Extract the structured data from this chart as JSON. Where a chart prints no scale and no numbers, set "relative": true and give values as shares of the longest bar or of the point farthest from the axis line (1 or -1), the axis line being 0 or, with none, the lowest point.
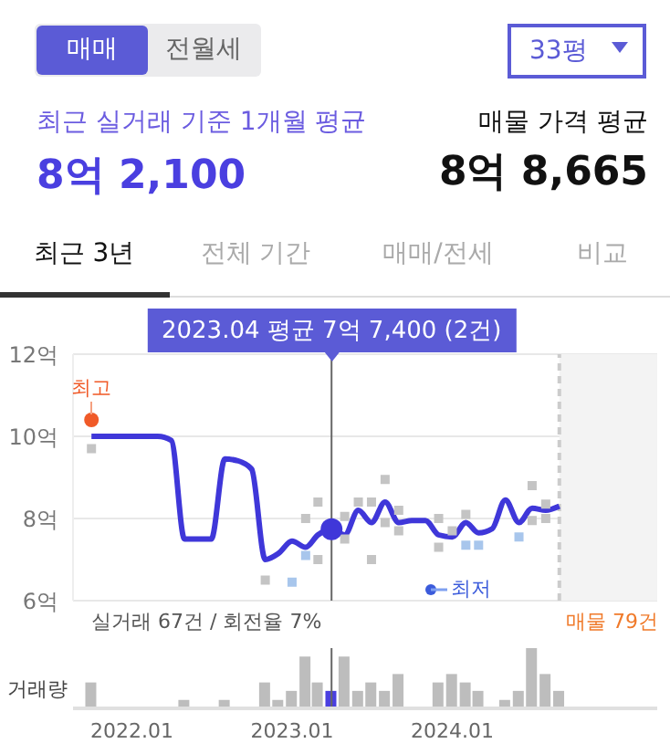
{
  "chart_data": [
    {
      "type": "other",
      "annotations": [
        "매매",
        "전월세",
        "33평",
        "최근 실거래 기준 1개월 평균",
        "8억 2,100",
        "매물 가격 평균",
        "8억 8,665",
        "최근 3년",
        "전체 기간",
        "매매/전세",
        "비교"
      ]
    },
    {
      "type": "line",
      "xlim": [
        "2021-08-20",
        "2025-04-12"
      ],
      "ylim": [
        6,
        12
      ],
      "yticks": [
        {
          "value": 6,
          "label": "6억"
        },
        {
          "value": 8,
          "label": "8억"
        },
        {
          "value": 10,
          "label": "10억"
        },
        {
          "value": 12,
          "label": "12억"
        }
      ],
      "tick_labels": "y",
      "grid": "y",
      "marker": "none",
      "x": [
        "2021-10",
        "2021-11",
        "2021-12",
        "2022-01",
        "2022-02",
        "2022-03",
        "2022-04",
        "2022-05",
        "2022-06",
        "2022-07",
        "2022-08",
        "2022-09",
        "2022-10",
        "2022-11",
        "2022-12",
        "2023-01",
        "2023-02",
        "2023-03",
        "2023-04",
        "2023-05",
        "2023-06",
        "2023-07",
        "2023-08",
        "2023-09",
        "2023-10",
        "2023-11",
        "2023-12",
        "2024-01",
        "2024-02",
        "2024-03",
        "2024-04",
        "2024-05",
        "2024-06",
        "2024-07",
        "2024-08",
        "2024-09"
      ],
      "series": [
        {
          "color": "#3f37d9",
          "values": [
            10.0,
            10.0,
            10.0,
            10.0,
            10.0,
            10.0,
            9.9,
            7.5,
            7.5,
            7.5,
            9.45,
            9.4,
            9.2,
            7.0,
            7.15,
            7.45,
            7.3,
            7.6,
            7.74,
            7.6,
            8.2,
            7.9,
            8.4,
            7.9,
            7.95,
            7.95,
            7.6,
            7.55,
            7.9,
            7.65,
            7.75,
            8.45,
            7.9,
            8.25,
            8.2,
            8.3
          ]
        },
        {
          "type": "scatter",
          "marker": "square",
          "color": "#c4c4c4",
          "x": [
            "2021-10",
            "2022-11",
            "2023-02",
            "2023-03",
            "2023-03",
            "2023-05",
            "2023-05",
            "2023-06",
            "2023-07",
            "2023-07",
            "2023-08",
            "2023-08",
            "2023-09",
            "2023-09",
            "2023-12",
            "2023-12",
            "2024-01",
            "2024-02",
            "2024-07",
            "2024-07",
            "2024-08",
            "2024-08"
          ],
          "values": [
            9.7,
            6.5,
            8.0,
            8.4,
            7.0,
            8.05,
            7.5,
            8.4,
            8.4,
            7.0,
            8.95,
            7.9,
            8.2,
            7.7,
            8.0,
            7.3,
            7.7,
            8.1,
            8.8,
            7.95,
            8.35,
            8.0
          ]
        },
        {
          "type": "scatter",
          "marker": "square",
          "color": "#a8c6ec",
          "x": [
            "2023-01",
            "2023-02",
            "2024-02",
            "2024-03",
            "2024-06"
          ],
          "values": [
            6.45,
            7.1,
            7.35,
            7.35,
            7.55
          ]
        }
      ],
      "ref_lines": [
        {
          "axis": "x",
          "value": "2023-04",
          "color": "#666666"
        },
        {
          "axis": "x",
          "value": "2024-09",
          "color": "#cccccc",
          "line_style": "dashed"
        }
      ],
      "bands": [
        {
          "axis": "x",
          "from": "2024-09",
          "to": "2025-04-12",
          "color": "#f3f3f3"
        }
      ],
      "annotations": [
        "2023.04 평균 7억 7,400 (2건)",
        {
          "text": "최고",
          "x": "2021-10",
          "y": 10.4
        },
        "최저",
        "실거래 67건 / 회전율 7%",
        "매물 79건"
      ]
    },
    {
      "type": "bar",
      "relative": true,
      "ylabel": "거래량",
      "xlim": [
        "2021-08-20",
        "2025-04-12"
      ],
      "xticks": [
        {
          "value": "2022-01",
          "label": "2022.01"
        },
        {
          "value": "2023-01",
          "label": "2023.01"
        },
        {
          "value": "2024-01",
          "label": "2024.01"
        }
      ],
      "x": [
        "2021-10",
        "2022-05",
        "2022-08",
        "2022-11",
        "2022-12",
        "2023-01",
        "2023-02",
        "2023-03",
        "2023-04",
        "2023-05",
        "2023-06",
        "2023-07",
        "2023-08",
        "2023-09",
        "2023-12",
        "2024-01",
        "2024-02",
        "2024-03",
        "2024-05",
        "2024-06",
        "2024-07",
        "2024-08",
        "2024-09"
      ],
      "values": [
        0.43,
        0.14,
        0.14,
        0.43,
        0.14,
        0.29,
        0.86,
        0.43,
        0.29,
        0.86,
        0.29,
        0.43,
        0.29,
        0.57,
        0.43,
        0.57,
        0.43,
        0.29,
        0.14,
        0.29,
        1,
        0.57,
        0.29
      ],
      "colors": [
        "#bdbdbd",
        "#bdbdbd",
        "#bdbdbd",
        "#bdbdbd",
        "#bdbdbd",
        "#bdbdbd",
        "#bdbdbd",
        "#bdbdbd",
        "#4a3fe0",
        "#bdbdbd",
        "#bdbdbd",
        "#bdbdbd",
        "#bdbdbd",
        "#bdbdbd",
        "#bdbdbd",
        "#bdbdbd",
        "#bdbdbd",
        "#bdbdbd",
        "#bdbdbd",
        "#bdbdbd",
        "#bdbdbd",
        "#bdbdbd",
        "#bdbdbd"
      ],
      "ref_lines": [
        {
          "axis": "x",
          "value": "2023-04",
          "color": "#666666"
        }
      ]
    }
  ]
}
